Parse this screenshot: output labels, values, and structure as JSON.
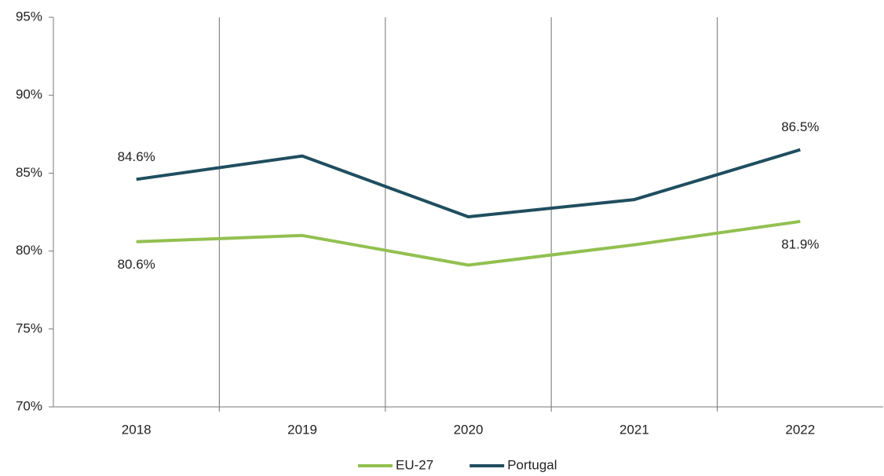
{
  "chart_data": {
    "type": "line",
    "categories": [
      "2018",
      "2019",
      "2020",
      "2021",
      "2022"
    ],
    "series": [
      {
        "name": "EU-27",
        "color": "#92c050",
        "values": [
          80.6,
          81.0,
          79.1,
          80.4,
          81.9
        ],
        "value_labels": [
          "80.6%",
          null,
          null,
          null,
          "81.9%"
        ]
      },
      {
        "name": "Portugal",
        "color": "#1f4e5f",
        "values": [
          84.6,
          86.1,
          82.2,
          83.3,
          86.5
        ],
        "value_labels": [
          "84.6%",
          null,
          null,
          null,
          "86.5%"
        ]
      }
    ],
    "ylim": [
      70,
      95
    ],
    "yticks": [
      {
        "value": 70,
        "label": "70%"
      },
      {
        "value": 75,
        "label": "75%"
      },
      {
        "value": 80,
        "label": "80%"
      },
      {
        "value": 85,
        "label": "85%"
      },
      {
        "value": 90,
        "label": "90%"
      },
      {
        "value": 95,
        "label": "95%"
      }
    ],
    "grid": true,
    "legend": "bottom"
  }
}
